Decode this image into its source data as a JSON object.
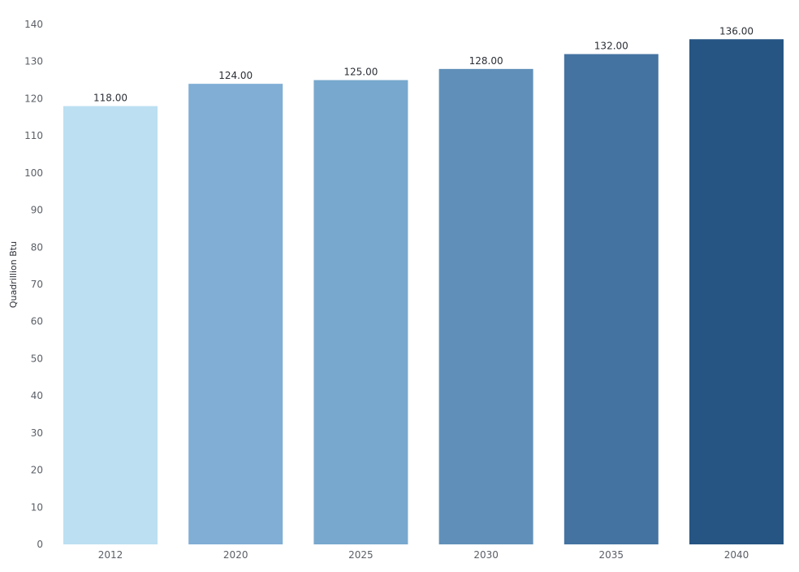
{
  "chart_data": {
    "type": "bar",
    "title": "",
    "xlabel": "",
    "ylabel": "Quadrillion Btu",
    "categories": [
      "2012",
      "2020",
      "2025",
      "2030",
      "2035",
      "2040"
    ],
    "values": [
      118,
      124,
      125,
      128,
      132,
      136
    ],
    "value_labels": [
      "118.00",
      "124.00",
      "125.00",
      "128.00",
      "132.00",
      "136.00"
    ],
    "ylim": [
      0,
      140
    ],
    "yticks": [
      0,
      10,
      20,
      30,
      40,
      50,
      60,
      70,
      80,
      90,
      100,
      110,
      120,
      130,
      140
    ],
    "grid": false,
    "legend": "none",
    "colors": [
      "#bcdff2",
      "#80aed5",
      "#78a8cd",
      "#6090b9",
      "#4473a1",
      "#265583"
    ]
  }
}
